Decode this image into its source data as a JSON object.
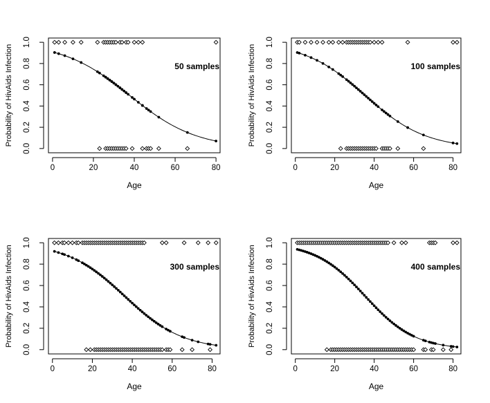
{
  "chart_data": [
    {
      "type": "scatter",
      "annotation": "50 samples",
      "xlabel": "Age",
      "ylabel": "Probability of HivAids Infection",
      "xlim": [
        -2,
        82
      ],
      "ylim": [
        -0.04,
        1.04
      ],
      "xticks": [
        "0",
        "20",
        "40",
        "60",
        "80"
      ],
      "yticks": [
        "0.0",
        "0.2",
        "0.4",
        "0.6",
        "0.8",
        "1.0"
      ],
      "curve": {
        "b0": 2.3,
        "b1": -0.061
      },
      "observed_ones_x": [
        1,
        3,
        6,
        10,
        14,
        22,
        25,
        26,
        27,
        28,
        29,
        30,
        31,
        33,
        34,
        36,
        37,
        40,
        42,
        44,
        80
      ],
      "observed_zeros_x": [
        23,
        26,
        27,
        28,
        29,
        30,
        31,
        32,
        33,
        34,
        35,
        36,
        39,
        44,
        46,
        47,
        48,
        52,
        66
      ],
      "fitted_x": [
        1,
        3,
        6,
        10,
        14,
        22,
        23,
        25,
        26,
        26,
        27,
        27,
        28,
        28,
        29,
        29,
        30,
        30,
        31,
        31,
        32,
        33,
        33,
        34,
        34,
        35,
        36,
        36,
        37,
        39,
        40,
        42,
        44,
        44,
        46,
        47,
        48,
        52,
        66,
        80
      ]
    },
    {
      "type": "scatter",
      "annotation": "100 samples",
      "xlabel": "Age",
      "ylabel": "Probability of HivAids Infection",
      "xlim": [
        -2,
        84
      ],
      "ylim": [
        -0.04,
        1.04
      ],
      "xticks": [
        "0",
        "20",
        "40",
        "60",
        "80"
      ],
      "yticks": [
        "0.0",
        "0.2",
        "0.4",
        "0.6",
        "0.8",
        "1.0"
      ],
      "curve": {
        "b0": 2.3,
        "b1": -0.065
      },
      "observed_ones_x": [
        1,
        2,
        5,
        8,
        11,
        14,
        17,
        19,
        22,
        24,
        26,
        27,
        28,
        29,
        30,
        31,
        32,
        33,
        34,
        35,
        36,
        37,
        38,
        40,
        42,
        44,
        57,
        80,
        82
      ],
      "observed_zeros_x": [
        23,
        26,
        27,
        28,
        29,
        30,
        31,
        32,
        33,
        34,
        35,
        36,
        37,
        38,
        39,
        40,
        41,
        44,
        45,
        46,
        47,
        48,
        52,
        65
      ],
      "fitted_x": [
        1,
        2,
        5,
        8,
        11,
        14,
        17,
        19,
        22,
        23,
        24,
        26,
        27,
        28,
        29,
        30,
        31,
        32,
        33,
        34,
        35,
        36,
        37,
        38,
        39,
        40,
        41,
        42,
        44,
        45,
        46,
        47,
        48,
        52,
        57,
        65,
        80,
        82
      ]
    },
    {
      "type": "scatter",
      "annotation": "300 samples",
      "xlabel": "Age",
      "ylabel": "Probability of HivAids Infection",
      "xlim": [
        -2,
        84
      ],
      "ylim": [
        -0.04,
        1.04
      ],
      "xticks": [
        "0",
        "20",
        "40",
        "60",
        "80"
      ],
      "yticks": [
        "0.0",
        "0.2",
        "0.4",
        "0.6",
        "0.8",
        "1.0"
      ],
      "curve": {
        "b0": 2.5,
        "b1": -0.069
      },
      "observed_ones_x": [
        1,
        3,
        5,
        6,
        8,
        10,
        12,
        13,
        15,
        16,
        17,
        18,
        19,
        20,
        21,
        22,
        23,
        24,
        25,
        26,
        27,
        28,
        29,
        30,
        31,
        32,
        33,
        34,
        35,
        36,
        37,
        38,
        39,
        40,
        41,
        42,
        43,
        44,
        45,
        46,
        55,
        57,
        66,
        73,
        78,
        82
      ],
      "observed_zeros_x": [
        17,
        19,
        21,
        22,
        23,
        24,
        25,
        26,
        27,
        28,
        29,
        30,
        31,
        32,
        33,
        34,
        35,
        36,
        37,
        38,
        39,
        40,
        41,
        42,
        43,
        44,
        45,
        46,
        47,
        48,
        49,
        50,
        51,
        52,
        53,
        54,
        55,
        57,
        58,
        59,
        65,
        70,
        79
      ],
      "fitted_x": [
        1,
        3,
        5,
        6,
        8,
        10,
        12,
        13,
        15,
        16,
        17,
        18,
        19,
        20,
        21,
        22,
        23,
        24,
        25,
        26,
        27,
        28,
        29,
        30,
        31,
        32,
        33,
        34,
        35,
        36,
        37,
        38,
        39,
        40,
        41,
        42,
        43,
        44,
        45,
        46,
        47,
        48,
        49,
        50,
        51,
        52,
        53,
        54,
        55,
        57,
        58,
        59,
        65,
        66,
        70,
        73,
        78,
        79,
        82
      ]
    },
    {
      "type": "scatter",
      "annotation": "400 samples",
      "xlabel": "Age",
      "ylabel": "Probability of HivAids Infection",
      "xlim": [
        -2,
        84
      ],
      "ylim": [
        -0.04,
        1.04
      ],
      "xticks": [
        "0",
        "20",
        "40",
        "60",
        "80"
      ],
      "yticks": [
        "0.0",
        "0.2",
        "0.4",
        "0.6",
        "0.8",
        "1.0"
      ],
      "curve": {
        "b0": 2.8,
        "b1": -0.079
      },
      "observed_ones_x": [
        1,
        2,
        3,
        4,
        5,
        6,
        7,
        8,
        9,
        10,
        11,
        12,
        13,
        14,
        15,
        16,
        17,
        18,
        19,
        20,
        21,
        22,
        23,
        24,
        25,
        26,
        27,
        28,
        29,
        30,
        31,
        32,
        33,
        34,
        35,
        36,
        37,
        38,
        39,
        40,
        41,
        42,
        43,
        44,
        45,
        46,
        47,
        50,
        54,
        56,
        68,
        69,
        70,
        71,
        80,
        82
      ],
      "observed_zeros_x": [
        16,
        18,
        19,
        20,
        21,
        22,
        23,
        24,
        25,
        26,
        27,
        28,
        29,
        30,
        31,
        32,
        33,
        34,
        35,
        36,
        37,
        38,
        39,
        40,
        41,
        42,
        43,
        44,
        45,
        46,
        47,
        48,
        49,
        50,
        51,
        52,
        53,
        54,
        55,
        56,
        57,
        58,
        59,
        60,
        65,
        66,
        69,
        70,
        75,
        79
      ],
      "fitted_x": [
        1,
        2,
        3,
        4,
        5,
        6,
        7,
        8,
        9,
        10,
        11,
        12,
        13,
        14,
        15,
        16,
        17,
        18,
        19,
        20,
        21,
        22,
        23,
        24,
        25,
        26,
        27,
        28,
        29,
        30,
        31,
        32,
        33,
        34,
        35,
        36,
        37,
        38,
        39,
        40,
        41,
        42,
        43,
        44,
        45,
        46,
        47,
        48,
        49,
        50,
        51,
        52,
        53,
        54,
        55,
        56,
        57,
        58,
        59,
        60,
        65,
        66,
        68,
        69,
        70,
        71,
        75,
        79,
        80,
        82
      ]
    }
  ]
}
